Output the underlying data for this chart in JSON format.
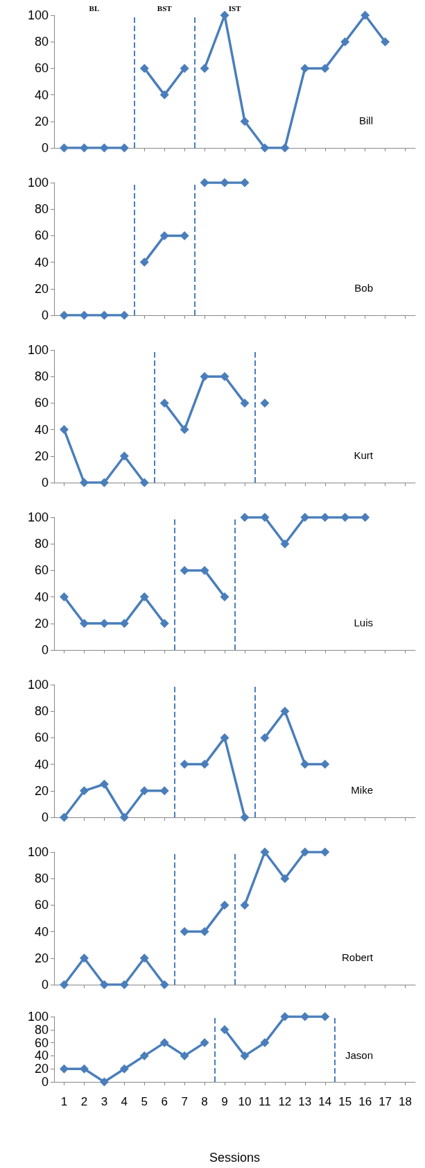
{
  "chart_data": [
    {
      "type": "line",
      "title": "Bill",
      "annotations": [
        "BL",
        "BST",
        "IST"
      ],
      "xlim": [
        0.5,
        18.5
      ],
      "xticks": [
        1,
        2,
        3,
        4,
        5,
        6,
        7,
        8,
        9,
        10,
        11,
        12,
        13,
        14,
        15,
        16,
        17,
        18
      ],
      "ylim": [
        0,
        100
      ],
      "yticks": [
        0,
        20,
        40,
        60,
        80,
        100
      ],
      "tick_labels": "y",
      "marker": "diamond",
      "ref_lines": [
        {
          "axis": "x",
          "value": 4.5,
          "color": "#4a7ebb",
          "line_style": "dashed"
        },
        {
          "axis": "x",
          "value": 7.5,
          "color": "#4a7ebb",
          "line_style": "dashed"
        }
      ],
      "series": [
        {
          "color": "#4a7ebb",
          "x": [
            1,
            2,
            3,
            4
          ],
          "values": [
            0,
            0,
            0,
            0
          ]
        },
        {
          "color": "#4a7ebb",
          "x": [
            5,
            6,
            7
          ],
          "values": [
            60,
            40,
            60
          ]
        },
        {
          "color": "#4a7ebb",
          "x": [
            8,
            9,
            10,
            11,
            12,
            13,
            14,
            15,
            16,
            17
          ],
          "values": [
            60,
            100,
            20,
            0,
            0,
            60,
            60,
            80,
            100,
            80
          ]
        }
      ]
    },
    {
      "type": "line",
      "title": "Bob",
      "xlim": [
        0.5,
        18.5
      ],
      "xticks": [
        1,
        2,
        3,
        4,
        5,
        6,
        7,
        8,
        9,
        10,
        11,
        12,
        13,
        14,
        15,
        16,
        17,
        18
      ],
      "ylim": [
        0,
        100
      ],
      "yticks": [
        0,
        20,
        40,
        60,
        80,
        100
      ],
      "tick_labels": "y",
      "marker": "diamond",
      "ref_lines": [
        {
          "axis": "x",
          "value": 4.5,
          "color": "#4a7ebb",
          "line_style": "dashed"
        },
        {
          "axis": "x",
          "value": 7.5,
          "color": "#4a7ebb",
          "line_style": "dashed"
        }
      ],
      "series": [
        {
          "color": "#4a7ebb",
          "x": [
            1,
            2,
            3,
            4
          ],
          "values": [
            0,
            0,
            0,
            0
          ]
        },
        {
          "color": "#4a7ebb",
          "x": [
            5,
            6,
            7
          ],
          "values": [
            40,
            60,
            60
          ]
        },
        {
          "color": "#4a7ebb",
          "x": [
            8,
            9,
            10
          ],
          "values": [
            100,
            100,
            100
          ]
        }
      ]
    },
    {
      "type": "line",
      "title": "Kurt",
      "xlim": [
        0.5,
        18.5
      ],
      "xticks": [
        1,
        2,
        3,
        4,
        5,
        6,
        7,
        8,
        9,
        10,
        11,
        12,
        13,
        14,
        15,
        16,
        17,
        18
      ],
      "ylim": [
        0,
        100
      ],
      "yticks": [
        0,
        20,
        40,
        60,
        80,
        100
      ],
      "tick_labels": "y",
      "marker": "diamond",
      "ref_lines": [
        {
          "axis": "x",
          "value": 5.5,
          "color": "#4a7ebb",
          "line_style": "dashed"
        },
        {
          "axis": "x",
          "value": 10.5,
          "color": "#4a7ebb",
          "line_style": "dashed"
        }
      ],
      "series": [
        {
          "color": "#4a7ebb",
          "x": [
            1,
            2,
            3,
            4,
            5
          ],
          "values": [
            40,
            0,
            0,
            20,
            0
          ]
        },
        {
          "color": "#4a7ebb",
          "x": [
            6,
            7,
            8,
            9,
            10
          ],
          "values": [
            60,
            40,
            80,
            80,
            60
          ]
        },
        {
          "color": "#4a7ebb",
          "x": [
            11
          ],
          "values": [
            60
          ]
        }
      ]
    },
    {
      "type": "line",
      "title": "Luis",
      "xlim": [
        0.5,
        18.5
      ],
      "xticks": [
        1,
        2,
        3,
        4,
        5,
        6,
        7,
        8,
        9,
        10,
        11,
        12,
        13,
        14,
        15,
        16,
        17,
        18
      ],
      "ylim": [
        0,
        100
      ],
      "yticks": [
        0,
        20,
        40,
        60,
        80,
        100
      ],
      "tick_labels": "y",
      "marker": "diamond",
      "ref_lines": [
        {
          "axis": "x",
          "value": 6.5,
          "color": "#4a7ebb",
          "line_style": "dashed"
        },
        {
          "axis": "x",
          "value": 9.5,
          "color": "#4a7ebb",
          "line_style": "dashed"
        }
      ],
      "series": [
        {
          "color": "#4a7ebb",
          "x": [
            1,
            2,
            3,
            4,
            5,
            6
          ],
          "values": [
            40,
            20,
            20,
            20,
            40,
            20
          ]
        },
        {
          "color": "#4a7ebb",
          "x": [
            7,
            8,
            9
          ],
          "values": [
            60,
            60,
            40
          ]
        },
        {
          "color": "#4a7ebb",
          "x": [
            10,
            11,
            12,
            13,
            14,
            15,
            16
          ],
          "values": [
            100,
            100,
            80,
            100,
            100,
            100,
            100
          ]
        }
      ]
    },
    {
      "type": "line",
      "title": "Mike",
      "xlim": [
        0.5,
        18.5
      ],
      "xticks": [
        1,
        2,
        3,
        4,
        5,
        6,
        7,
        8,
        9,
        10,
        11,
        12,
        13,
        14,
        15,
        16,
        17,
        18
      ],
      "ylim": [
        0,
        100
      ],
      "yticks": [
        0,
        20,
        40,
        60,
        80,
        100
      ],
      "tick_labels": "y",
      "marker": "diamond",
      "ref_lines": [
        {
          "axis": "x",
          "value": 6.5,
          "color": "#4a7ebb",
          "line_style": "dashed"
        },
        {
          "axis": "x",
          "value": 10.5,
          "color": "#4a7ebb",
          "line_style": "dashed"
        }
      ],
      "series": [
        {
          "color": "#4a7ebb",
          "x": [
            1,
            2,
            3,
            4,
            5,
            6
          ],
          "values": [
            0,
            20,
            25,
            0,
            20,
            20
          ]
        },
        {
          "color": "#4a7ebb",
          "x": [
            7,
            8,
            9,
            10
          ],
          "values": [
            40,
            40,
            60,
            0
          ]
        },
        {
          "color": "#4a7ebb",
          "x": [
            11,
            12,
            13,
            14
          ],
          "values": [
            60,
            80,
            40,
            40
          ]
        }
      ]
    },
    {
      "type": "line",
      "title": "Robert",
      "xlim": [
        0.5,
        18.5
      ],
      "xticks": [
        1,
        2,
        3,
        4,
        5,
        6,
        7,
        8,
        9,
        10,
        11,
        12,
        13,
        14,
        15,
        16,
        17,
        18
      ],
      "ylim": [
        0,
        100
      ],
      "yticks": [
        0,
        20,
        40,
        60,
        80,
        100
      ],
      "tick_labels": "y",
      "marker": "diamond",
      "ref_lines": [
        {
          "axis": "x",
          "value": 6.5,
          "color": "#4a7ebb",
          "line_style": "dashed"
        },
        {
          "axis": "x",
          "value": 9.5,
          "color": "#4a7ebb",
          "line_style": "dashed"
        }
      ],
      "series": [
        {
          "color": "#4a7ebb",
          "x": [
            1,
            2,
            3,
            4,
            5,
            6
          ],
          "values": [
            0,
            20,
            0,
            0,
            20,
            0
          ]
        },
        {
          "color": "#4a7ebb",
          "x": [
            7,
            8,
            9
          ],
          "values": [
            40,
            40,
            60
          ]
        },
        {
          "color": "#4a7ebb",
          "x": [
            10,
            11,
            12,
            13,
            14
          ],
          "values": [
            60,
            100,
            80,
            100,
            100
          ]
        }
      ]
    },
    {
      "type": "line",
      "title": "Jason",
      "xlabel": "Sessions",
      "xlim": [
        0.5,
        18.5
      ],
      "xticks": [
        1,
        2,
        3,
        4,
        5,
        6,
        7,
        8,
        9,
        10,
        11,
        12,
        13,
        14,
        15,
        16,
        17,
        18
      ],
      "ylim": [
        0,
        100
      ],
      "yticks": [
        0,
        20,
        40,
        60,
        80,
        100
      ],
      "marker": "diamond",
      "ref_lines": [
        {
          "axis": "x",
          "value": 8.5,
          "color": "#4a7ebb",
          "line_style": "dashed"
        },
        {
          "axis": "x",
          "value": 14.5,
          "color": "#4a7ebb",
          "line_style": "dashed"
        }
      ],
      "series": [
        {
          "color": "#4a7ebb",
          "x": [
            1,
            2,
            3,
            4,
            5,
            6,
            7,
            8
          ],
          "values": [
            20,
            20,
            0,
            20,
            40,
            60,
            40,
            60
          ]
        },
        {
          "color": "#4a7ebb",
          "x": [
            9,
            10,
            11,
            12,
            13,
            14
          ],
          "values": [
            80,
            40,
            60,
            100,
            100,
            100
          ]
        }
      ]
    }
  ]
}
